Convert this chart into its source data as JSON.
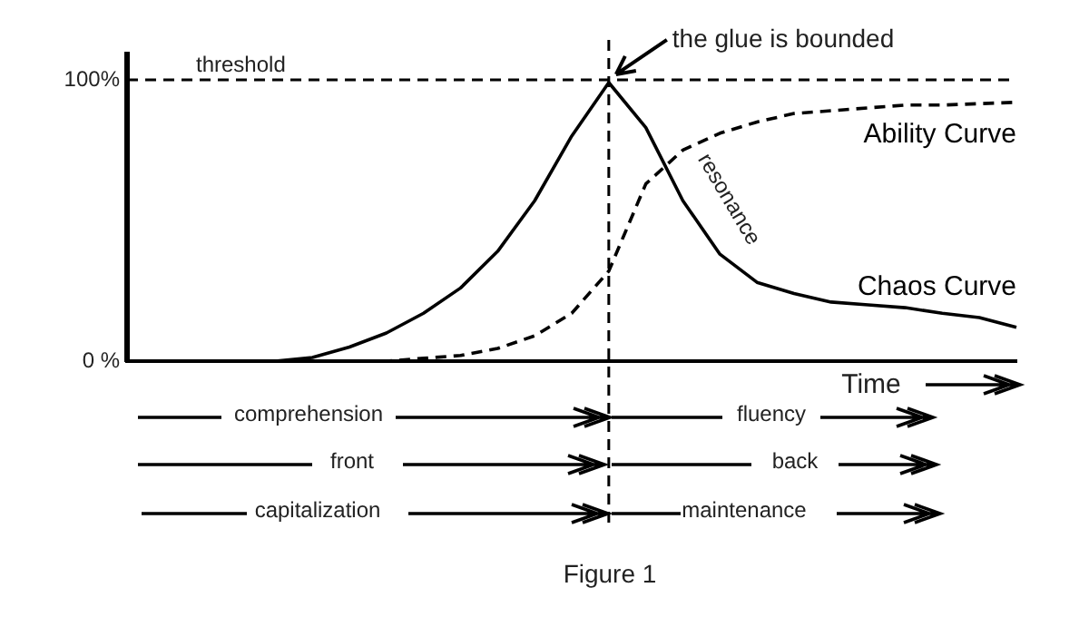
{
  "chart_data": {
    "type": "line",
    "xlabel": "Time",
    "categories": [
      null,
      null,
      null,
      null,
      null,
      null,
      null,
      null,
      null,
      null,
      null,
      null,
      null,
      null,
      null,
      null,
      null,
      null,
      null,
      null,
      null,
      null,
      null,
      null,
      null
    ],
    "ylim": [
      0,
      109
    ],
    "yticks": [
      {
        "value": 0,
        "label": "0 %"
      },
      {
        "value": 100,
        "label": "100%"
      }
    ],
    "grid": false,
    "legend": false,
    "marker": "none",
    "series": [
      {
        "name": "Ability Curve",
        "color": "#000000",
        "line_style": "dashed",
        "values": [
          0,
          0,
          0,
          0,
          0,
          0,
          0,
          0,
          1,
          2,
          4.5,
          9,
          17,
          32,
          63,
          75,
          81,
          85,
          88,
          89,
          90,
          91,
          91,
          91.5,
          92
        ]
      },
      {
        "name": "Chaos Curve",
        "color": "#000000",
        "line_style": "solid",
        "values": [
          0,
          0,
          0,
          0,
          0,
          1.3,
          5,
          10,
          17,
          26,
          39,
          57,
          80,
          99,
          83,
          57,
          38,
          28,
          24,
          21,
          20,
          19,
          17,
          15.5,
          12
        ]
      }
    ],
    "ref_lines": [
      {
        "axis": "y",
        "value": 100,
        "label": "threshold",
        "color": "#000000",
        "line_style": "dashed"
      }
    ],
    "annotations": [
      "the glue is bounded",
      "resonance",
      "comprehension",
      "fluency",
      "front",
      "back",
      "capitalization",
      "maintenance",
      "Figure 1"
    ]
  }
}
